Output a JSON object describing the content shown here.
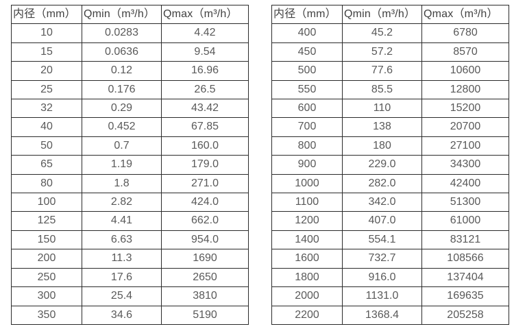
{
  "colors": {
    "background": "#ffffff",
    "border": "#2a2a2a",
    "header_text": "#414141",
    "cell_text": "#595959"
  },
  "tables": [
    {
      "name": "flow-rate-table-small-diameters",
      "headers": [
        "内径（mm）",
        "Qmin（m³/h）",
        "Qmax（m³/h）"
      ],
      "rows": [
        [
          "10",
          "0.0283",
          "4.42"
        ],
        [
          "15",
          "0.0636",
          "9.54"
        ],
        [
          "20",
          "0.12",
          "16.96"
        ],
        [
          "25",
          "0.176",
          "26.5"
        ],
        [
          "32",
          "0.29",
          "43.42"
        ],
        [
          "40",
          "0.452",
          "67.85"
        ],
        [
          "50",
          "0.7",
          "160.0"
        ],
        [
          "65",
          "1.19",
          "179.0"
        ],
        [
          "80",
          "1.8",
          "271.0"
        ],
        [
          "100",
          "2.82",
          "424.0"
        ],
        [
          "125",
          "4.41",
          "662.0"
        ],
        [
          "150",
          "6.63",
          "954.0"
        ],
        [
          "200",
          "11.3",
          "1690"
        ],
        [
          "250",
          "17.6",
          "2650"
        ],
        [
          "300",
          "25.4",
          "3810"
        ],
        [
          "350",
          "34.6",
          "5190"
        ]
      ]
    },
    {
      "name": "flow-rate-table-large-diameters",
      "headers": [
        "内径（mm）",
        "Qmin（m³/h）",
        "Qmax（m³/h）"
      ],
      "rows": [
        [
          "400",
          "45.2",
          "6780"
        ],
        [
          "450",
          "57.2",
          "8570"
        ],
        [
          "500",
          "77.6",
          "10600"
        ],
        [
          "550",
          "85.5",
          "12800"
        ],
        [
          "600",
          "110",
          "15200"
        ],
        [
          "700",
          "138",
          "20700"
        ],
        [
          "800",
          "180",
          "27100"
        ],
        [
          "900",
          "229.0",
          "34300"
        ],
        [
          "1000",
          "282.0",
          "42400"
        ],
        [
          "1100",
          "342.0",
          "51300"
        ],
        [
          "1200",
          "407.0",
          "61000"
        ],
        [
          "1400",
          "554.1",
          "83121"
        ],
        [
          "1600",
          "732.7",
          "108566"
        ],
        [
          "1800",
          "916.0",
          "137404"
        ],
        [
          "2000",
          "1131.0",
          "169635"
        ],
        [
          "2200",
          "1368.4",
          "205258"
        ]
      ]
    }
  ]
}
